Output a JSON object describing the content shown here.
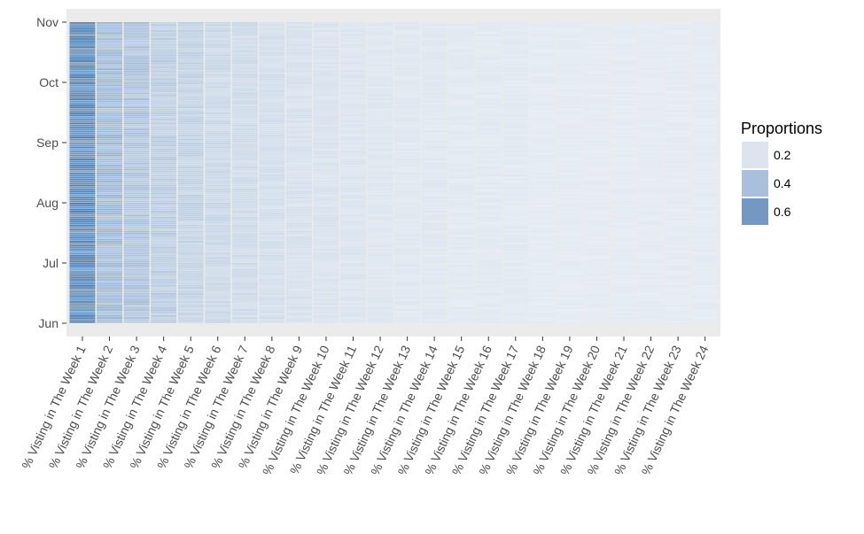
{
  "chart_data": {
    "type": "heatmap",
    "title": "",
    "xlabel": "",
    "ylabel": "",
    "x_categories": [
      "% Visting in The Week 1",
      "% Visting in The Week 2",
      "% Visting in The Week 3",
      "% Visting in The Week 4",
      "% Visting in The Week 5",
      "% Visting in The Week 6",
      "% Visting in The Week 7",
      "% Visting in The Week 8",
      "% Visting in The Week 9",
      "% Visting in The Week 10",
      "% Visting in The Week 11",
      "% Visting in The Week 12",
      "% Visting in The Week 13",
      "% Visting in The Week 14",
      "% Visting in The Week 15",
      "% Visting in The Week 16",
      "% Visting in The Week 17",
      "% Visting in The Week 18",
      "% Visting in The Week 19",
      "% Visting in The Week 20",
      "% Visting in The Week 21",
      "% Visting in The Week 22",
      "% Visting in The Week 23",
      "% Visting in The Week 24"
    ],
    "y_ticks": [
      "Jun",
      "Jul",
      "Aug",
      "Sep",
      "Oct",
      "Nov"
    ],
    "y_range": [
      "Jun",
      "Nov"
    ],
    "column_mean_proportions": [
      0.66,
      0.36,
      0.31,
      0.25,
      0.22,
      0.19,
      0.17,
      0.15,
      0.13,
      0.12,
      0.11,
      0.1,
      0.09,
      0.09,
      0.08,
      0.08,
      0.08,
      0.07,
      0.07,
      0.07,
      0.07,
      0.07,
      0.07,
      0.07
    ],
    "legend": {
      "title": "Proportions",
      "position": "right",
      "entries": [
        {
          "label": "0.2",
          "value": 0.2,
          "color": "#dbe4ef"
        },
        {
          "label": "0.4",
          "value": 0.4,
          "color": "#a9bfdb"
        },
        {
          "label": "0.6",
          "value": 0.6,
          "color": "#7399c3"
        }
      ]
    },
    "color_scale": {
      "low": "#f4f7fb",
      "high": "#4e7fb5",
      "domain": [
        0.0,
        0.75
      ]
    },
    "panel_background": "#ebebeb",
    "gridlines": true
  }
}
